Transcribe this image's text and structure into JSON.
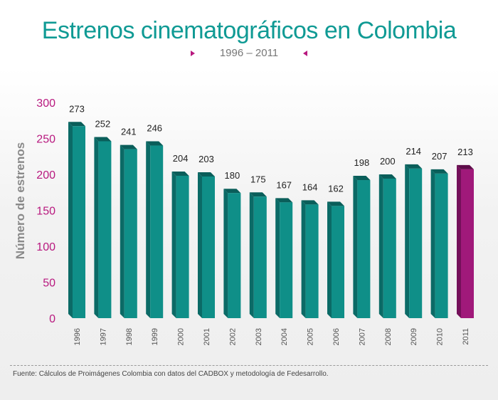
{
  "header": {
    "title": "Estrenos cinematográficos en Colombia",
    "subtitle": "1996 – 2011"
  },
  "footer": {
    "source": "Fuente: Cálculos de Proimágenes Colombia con datos del CADBOX y metodología de Fedesarrollo."
  },
  "colors": {
    "accent": "#b8197f",
    "bar_front": "#0f8f88",
    "bar_side": "#0b6a66",
    "bar_top": "#0a5e5a",
    "highlight_front": "#a0197a",
    "highlight_side": "#74105a",
    "highlight_top": "#5e0c49",
    "title": "#0f9a94"
  },
  "chart_data": {
    "type": "bar",
    "categories": [
      "1996",
      "1997",
      "1998",
      "1999",
      "2000",
      "2001",
      "2002",
      "2003",
      "2004",
      "2005",
      "2006",
      "2007",
      "2008",
      "2009",
      "2010",
      "2011"
    ],
    "values": [
      273,
      252,
      241,
      246,
      204,
      203,
      180,
      175,
      167,
      164,
      162,
      198,
      200,
      214,
      207,
      213
    ],
    "highlight_category": "2011",
    "ylabel": "Número de estrenos",
    "xlabel": "",
    "ylim": [
      0,
      300
    ],
    "yticks": [
      0,
      50,
      100,
      150,
      200,
      250,
      300
    ],
    "grid": false,
    "data_labels": true
  }
}
